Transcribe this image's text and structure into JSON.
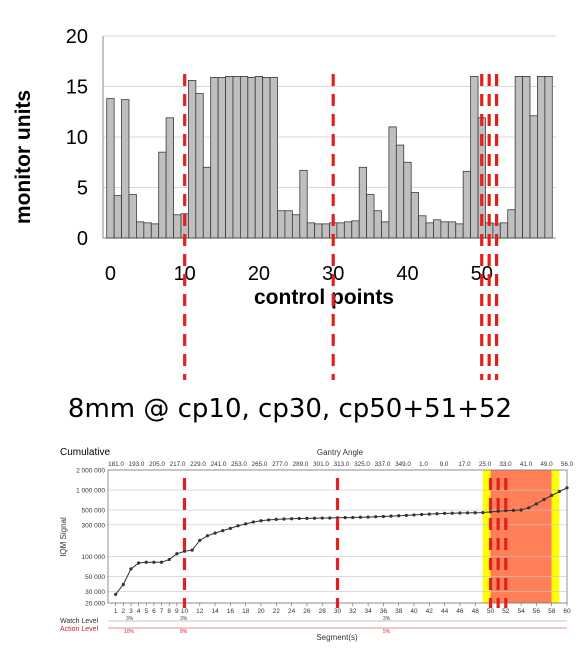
{
  "caption": "8mm @ cp10, cp30, cp50+51+52",
  "colors": {
    "bar_fill": "#bfbfbf",
    "bar_stroke": "#3a3a3a",
    "marker_line": "#e3201b",
    "yellow_band": "#ffff00",
    "red_band": "#ff7f59",
    "signal_line": "#333333"
  },
  "chart_data": [
    {
      "type": "bar",
      "title": "",
      "xlabel": "control points",
      "ylabel": "monitor units",
      "x": [
        0,
        1,
        2,
        3,
        4,
        5,
        6,
        7,
        8,
        9,
        10,
        11,
        12,
        13,
        14,
        15,
        16,
        17,
        18,
        19,
        20,
        21,
        22,
        23,
        24,
        25,
        26,
        27,
        28,
        29,
        30,
        31,
        32,
        33,
        34,
        35,
        36,
        37,
        38,
        39,
        40,
        41,
        42,
        43,
        44,
        45,
        46,
        47,
        48,
        49,
        50,
        51,
        52,
        53,
        54,
        55,
        56,
        57,
        58,
        59
      ],
      "values": [
        13.8,
        4.2,
        13.7,
        4.3,
        1.6,
        1.5,
        1.4,
        8.5,
        11.9,
        2.3,
        2.4,
        15.6,
        14.3,
        7,
        15.9,
        15.9,
        16,
        16,
        16,
        15.9,
        16,
        15.9,
        15.9,
        2.7,
        2.7,
        2.3,
        6.7,
        1.5,
        1.4,
        1.4,
        1.5,
        1.5,
        1.6,
        1.7,
        7,
        4.3,
        2.7,
        1.6,
        11,
        9.2,
        7.5,
        4.5,
        2.2,
        1.5,
        1.8,
        1.6,
        1.6,
        1.4,
        6.6,
        16,
        11.9,
        1.5,
        1.4,
        1.5,
        2.8,
        16,
        16,
        12.1,
        16,
        16
      ],
      "xlim": [
        -1,
        60
      ],
      "ylim": [
        0,
        20
      ],
      "xticks": [
        "0",
        "10",
        "20",
        "30",
        "40",
        "50"
      ],
      "yticks": [
        "0",
        "5",
        "10",
        "15",
        "20"
      ],
      "markers": [
        10,
        30,
        50,
        51,
        52
      ],
      "grid": "horizontal"
    },
    {
      "type": "line",
      "title": "Cumulative",
      "top_axis_label": "Gantry Angle",
      "xlabel": "Segment(s)",
      "ylabel": "IQM Signal",
      "yscale": "log",
      "ylim": [
        20000,
        2000000
      ],
      "xlim": [
        0,
        60
      ],
      "ytick_labels": [
        "2 000 000",
        "1 000 000",
        "500 000",
        "300 000",
        "100 000",
        "50 000",
        "30 000",
        "20 000"
      ],
      "gantry_angles": [
        "181.0",
        "193.0",
        "205.0",
        "217.0",
        "229.0",
        "241.0",
        "253.0",
        "265.0",
        "277.0",
        "289.0",
        "301.0",
        "313.0",
        "325.0",
        "337.0",
        "349.0",
        "1.0",
        "9.0",
        "17.0",
        "25.0",
        "33.0",
        "41.0",
        "49.0",
        "56.0"
      ],
      "xtick_labels": [
        "1",
        "2",
        "3",
        "4",
        "5",
        "6",
        "7",
        "8",
        "9",
        "10",
        "12",
        "14",
        "16",
        "18",
        "20",
        "22",
        "24",
        "26",
        "28",
        "30",
        "32",
        "34",
        "36",
        "38",
        "40",
        "42",
        "44",
        "46",
        "48",
        "50",
        "52",
        "54",
        "56",
        "58",
        "60"
      ],
      "x": [
        1,
        2,
        3,
        4,
        5,
        6,
        7,
        8,
        9,
        10,
        11,
        12,
        13,
        14,
        15,
        16,
        17,
        18,
        19,
        20,
        21,
        22,
        23,
        24,
        25,
        26,
        27,
        28,
        29,
        30,
        31,
        32,
        33,
        34,
        35,
        36,
        37,
        38,
        39,
        40,
        41,
        42,
        43,
        44,
        45,
        46,
        47,
        48,
        49,
        50,
        51,
        52,
        53,
        54,
        55,
        56,
        57,
        58,
        59,
        60
      ],
      "values": [
        27000,
        38000,
        65000,
        80000,
        82000,
        82000,
        82000,
        90000,
        110000,
        120000,
        125000,
        175000,
        205000,
        225000,
        245000,
        265000,
        290000,
        310000,
        330000,
        345000,
        355000,
        362000,
        367000,
        370000,
        373000,
        375000,
        377000,
        379000,
        380000,
        382000,
        384000,
        386000,
        389000,
        392000,
        396000,
        400000,
        405000,
        410000,
        416000,
        422000,
        428000,
        434000,
        440000,
        445000,
        448000,
        451000,
        453000,
        455000,
        458000,
        470000,
        480000,
        490000,
        495000,
        500000,
        540000,
        620000,
        720000,
        830000,
        950000,
        1080000
      ],
      "highlight_red": [
        49,
        58
      ],
      "highlight_yellow": [
        [
          49,
          50
        ],
        [
          58,
          59
        ]
      ],
      "watch_level_label": "Watch Level",
      "action_level_label": "Action Level",
      "watch_values": [
        "3%",
        "3%",
        "3%"
      ],
      "action_values": [
        "10%",
        "8%",
        "5%"
      ],
      "markers": [
        10,
        30,
        50,
        51,
        52
      ],
      "grid": "horizontal"
    }
  ]
}
